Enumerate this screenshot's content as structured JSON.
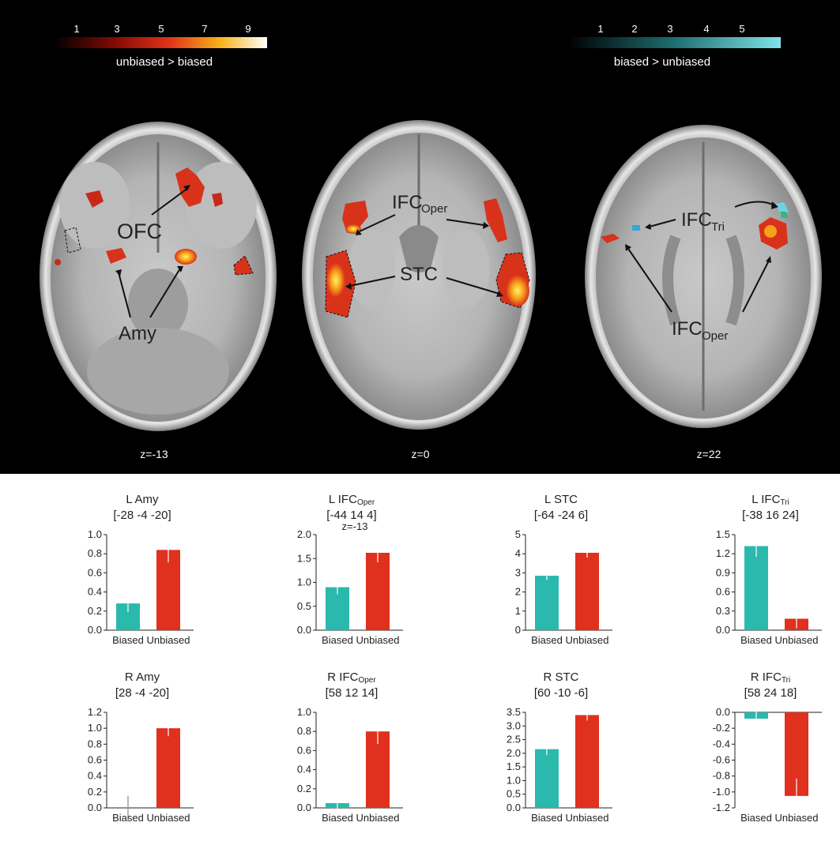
{
  "colorbars": {
    "hot": {
      "ticks": [
        "1",
        "3",
        "5",
        "7",
        "9"
      ],
      "label": "unbiased > biased"
    },
    "cool": {
      "ticks": [
        "1",
        "2",
        "3",
        "4",
        "5"
      ],
      "label": "biased > unbiased"
    }
  },
  "slices": [
    {
      "z": "z=-13",
      "labels": {
        "ofc": "OFC",
        "amy": "Amy"
      }
    },
    {
      "z": "z=0",
      "labels": {
        "ifc_base": "IFC",
        "ifc_sub": "Oper",
        "stc": "STC"
      }
    },
    {
      "z": "z=22",
      "labels": {
        "tri_base": "IFC",
        "tri_sub": "Tri",
        "oper_base": "IFC",
        "oper_sub": "Oper"
      }
    }
  ],
  "colors": {
    "biased": "#2bb9ad",
    "unbiased": "#e0301e"
  },
  "chart_data": [
    {
      "type": "bar",
      "title": "L Amy",
      "subtitle": "[-28 -4 -20]",
      "categories": [
        "Biased",
        "Unbiased"
      ],
      "values": [
        0.28,
        0.84
      ],
      "errors": [
        0.09,
        0.13
      ],
      "ylim": [
        0,
        1.0
      ],
      "yticks": [
        "0.0",
        "0.2",
        "0.4",
        "0.6",
        "0.8",
        "1.0"
      ]
    },
    {
      "type": "bar",
      "title": "L IFC",
      "title_sub": "Oper",
      "subtitle": "[-44 14 4]",
      "annotation": "z=-13",
      "categories": [
        "Biased",
        "Unbiased"
      ],
      "values": [
        0.9,
        1.62
      ],
      "errors": [
        0.15,
        0.2
      ],
      "ylim": [
        0,
        2.0
      ],
      "yticks": [
        "0.0",
        "0.5",
        "1.0",
        "1.5",
        "2.0"
      ]
    },
    {
      "type": "bar",
      "title": "L STC",
      "subtitle": "[-64 -24 6]",
      "categories": [
        "Biased",
        "Unbiased"
      ],
      "values": [
        2.85,
        4.05
      ],
      "errors": [
        0.22,
        0.25
      ],
      "ylim": [
        0,
        5
      ],
      "yticks": [
        "0",
        "1",
        "2",
        "3",
        "4",
        "5"
      ]
    },
    {
      "type": "bar",
      "title": "L IFC",
      "title_sub": "Tri",
      "subtitle": "[-38 16 24]",
      "categories": [
        "Biased",
        "Unbiased"
      ],
      "values": [
        1.32,
        0.18
      ],
      "errors": [
        0.17,
        0.15
      ],
      "ylim": [
        0,
        1.5
      ],
      "yticks": [
        "0.0",
        "0.3",
        "0.6",
        "0.9",
        "1.2",
        "1.5"
      ]
    },
    {
      "type": "bar",
      "title": "R Amy",
      "subtitle": "[28 -4 -20]",
      "categories": [
        "Biased",
        "Unbiased"
      ],
      "values": [
        0.0,
        1.0
      ],
      "errors": [
        0.15,
        0.1
      ],
      "ylim": [
        0,
        1.2
      ],
      "yticks": [
        "0.0",
        "0.2",
        "0.4",
        "0.6",
        "0.8",
        "1.0",
        "1.2"
      ]
    },
    {
      "type": "bar",
      "title": "R IFC",
      "title_sub": "Oper",
      "subtitle": "[58 12 14]",
      "categories": [
        "Biased",
        "Unbiased"
      ],
      "values": [
        0.05,
        0.8
      ],
      "errors": [
        0.12,
        0.13
      ],
      "ylim": [
        0,
        1.0
      ],
      "yticks": [
        "0.0",
        "0.2",
        "0.4",
        "0.6",
        "0.8",
        "1.0"
      ]
    },
    {
      "type": "bar",
      "title": "R STC",
      "subtitle": "[60 -10 -6]",
      "categories": [
        "Biased",
        "Unbiased"
      ],
      "values": [
        2.15,
        3.4
      ],
      "errors": [
        0.22,
        0.2
      ],
      "ylim": [
        0,
        3.5
      ],
      "yticks": [
        "0.0",
        "0.5",
        "1.0",
        "1.5",
        "2.0",
        "2.5",
        "3.0",
        "3.5"
      ]
    },
    {
      "type": "bar",
      "title": "R IFC",
      "title_sub": "Tri",
      "subtitle": "[58 24 18]",
      "categories": [
        "Biased",
        "Unbiased"
      ],
      "values": [
        -0.08,
        -1.05
      ],
      "errors": [
        0.22,
        0.22
      ],
      "ylim": [
        -1.2,
        0.0
      ],
      "yticks": [
        "0.0",
        "-0.2",
        "-0.4",
        "-0.6",
        "-0.8",
        "-1.0",
        "-1.2"
      ]
    }
  ]
}
